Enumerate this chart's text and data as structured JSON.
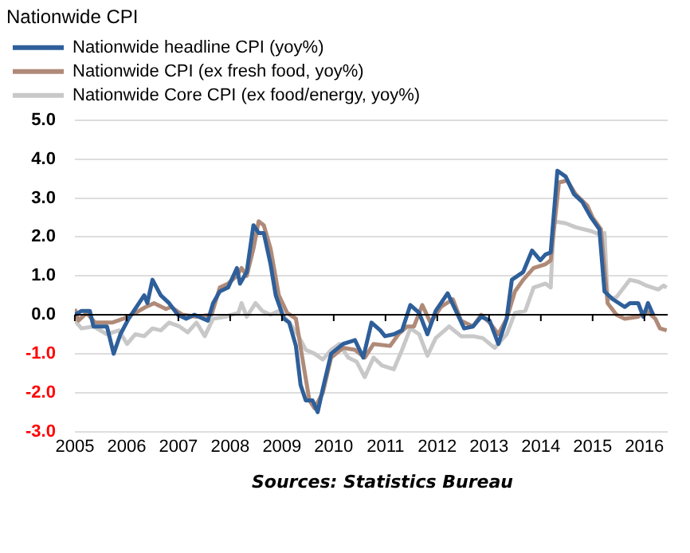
{
  "chart_data": {
    "type": "line",
    "title": "Nationwide CPI",
    "xlim": [
      2005,
      2016.45
    ],
    "xticks": [
      2005,
      2006,
      2007,
      2008,
      2009,
      2010,
      2011,
      2012,
      2013,
      2014,
      2015,
      2016
    ],
    "ylim": [
      -3,
      5
    ],
    "yticks": [
      {
        "value": -3,
        "label": "-3.0"
      },
      {
        "value": -2,
        "label": "-2.0"
      },
      {
        "value": -1,
        "label": "-1.0"
      },
      {
        "value": 0,
        "label": "0.0"
      },
      {
        "value": 1,
        "label": "1.0"
      },
      {
        "value": 2,
        "label": "2.0"
      },
      {
        "value": 3,
        "label": "3.0"
      },
      {
        "value": 4,
        "label": "4.0"
      },
      {
        "value": 5,
        "label": "5.0"
      }
    ],
    "grid": "y",
    "legend": "top left",
    "marker": "none",
    "line_style": "solid",
    "ref_lines": [
      {
        "axis": "y",
        "value": 0,
        "color": "#000000"
      }
    ],
    "annotations": [
      "Sources: Statistics Bureau"
    ],
    "series": [
      {
        "name": "Nationwide headline CPI (yoy%)",
        "color": "#2e5f9a",
        "x": [
          2005,
          2005.13,
          2005.29,
          2005.36,
          2005.62,
          2005.75,
          2005.88,
          2006.04,
          2006.34,
          2006.4,
          2006.5,
          2006.66,
          2006.82,
          2006.99,
          2007.15,
          2007.31,
          2007.48,
          2007.57,
          2007.67,
          2007.8,
          2007.96,
          2008.13,
          2008.19,
          2008.32,
          2008.45,
          2008.55,
          2008.65,
          2008.78,
          2008.88,
          2009.04,
          2009.14,
          2009.27,
          2009.36,
          2009.46,
          2009.59,
          2009.69,
          2009.79,
          2009.95,
          2010.18,
          2010.41,
          2010.57,
          2010.73,
          2010.9,
          2010.99,
          2011.16,
          2011.32,
          2011.48,
          2011.65,
          2011.81,
          2011.97,
          2012.2,
          2012.36,
          2012.52,
          2012.69,
          2012.85,
          2013.01,
          2013.18,
          2013.34,
          2013.44,
          2013.66,
          2013.83,
          2013.99,
          2014.09,
          2014.19,
          2014.32,
          2014.48,
          2014.64,
          2014.8,
          2014.97,
          2015.13,
          2015.23,
          2015.39,
          2015.62,
          2015.72,
          2015.88,
          2015.98,
          2016.07,
          2016.17
        ],
        "values": [
          0,
          0.1,
          0.1,
          -0.3,
          -0.3,
          -1.0,
          -0.5,
          -0.1,
          0.5,
          0.3,
          0.9,
          0.5,
          0.3,
          0,
          -0.1,
          0,
          -0.1,
          -0.15,
          0.3,
          0.6,
          0.7,
          1.2,
          0.8,
          1.1,
          2.3,
          2.1,
          2.1,
          1.3,
          0.5,
          -0.1,
          -0.2,
          -0.8,
          -1.8,
          -2.2,
          -2.2,
          -2.5,
          -1.9,
          -1.0,
          -0.75,
          -0.65,
          -1.1,
          -0.2,
          -0.4,
          -0.55,
          -0.5,
          -0.4,
          0.25,
          0.05,
          -0.5,
          0.1,
          0.55,
          0.1,
          -0.35,
          -0.3,
          -0.05,
          -0.15,
          -0.75,
          -0.1,
          0.9,
          1.1,
          1.65,
          1.4,
          1.55,
          1.6,
          3.7,
          3.55,
          3.1,
          2.9,
          2.5,
          2.2,
          0.6,
          0.4,
          0.2,
          0.3,
          0.3,
          -0.05,
          0.3,
          0
        ]
      },
      {
        "name": "Nationwide CPI (ex fresh food, yoy%)",
        "color": "#b08a78",
        "x": [
          2005,
          2005.07,
          2005.23,
          2005.39,
          2005.72,
          2005.94,
          2006.17,
          2006.37,
          2006.53,
          2006.76,
          2006.86,
          2007.08,
          2007.35,
          2007.64,
          2007.8,
          2007.96,
          2008.13,
          2008.22,
          2008.32,
          2008.45,
          2008.55,
          2008.65,
          2008.78,
          2008.94,
          2009.1,
          2009.27,
          2009.43,
          2009.53,
          2009.63,
          2009.79,
          2009.95,
          2010.18,
          2010.41,
          2010.6,
          2010.77,
          2011.09,
          2011.25,
          2011.42,
          2011.55,
          2011.71,
          2011.87,
          2012.07,
          2012.3,
          2012.46,
          2012.69,
          2012.85,
          2013.01,
          2013.18,
          2013.34,
          2013.5,
          2013.66,
          2013.86,
          2014.09,
          2014.19,
          2014.35,
          2014.51,
          2014.67,
          2014.9,
          2015.0,
          2015.16,
          2015.29,
          2015.46,
          2015.62,
          2015.88,
          2016.04,
          2016.21,
          2016.3,
          2016.43
        ],
        "values": [
          0.15,
          -0.15,
          0.05,
          -0.2,
          -0.2,
          -0.1,
          0.05,
          0.2,
          0.3,
          0.15,
          0.2,
          0,
          -0.05,
          0,
          0.7,
          0.8,
          1.0,
          1.2,
          1.0,
          1.7,
          2.4,
          2.3,
          1.7,
          0.5,
          0.05,
          -0.1,
          -1.4,
          -2.2,
          -2.4,
          -2.0,
          -1.1,
          -0.85,
          -0.9,
          -1.1,
          -0.75,
          -0.8,
          -0.5,
          -0.3,
          -0.3,
          0.25,
          -0.2,
          0.2,
          0.4,
          -0.15,
          -0.3,
          0,
          -0.2,
          -0.5,
          -0.1,
          0.6,
          0.9,
          1.2,
          1.3,
          1.4,
          3.4,
          3.45,
          3.1,
          2.8,
          2.5,
          2.2,
          0.3,
          0,
          -0.1,
          -0.05,
          0.1,
          -0.1,
          -0.35,
          -0.4
        ]
      },
      {
        "name": "Nationwide Core CPI (ex food/energy, yoy%)",
        "color": "#c8c8c8",
        "x": [
          2005,
          2005.13,
          2005.36,
          2005.62,
          2005.85,
          2006.01,
          2006.17,
          2006.34,
          2006.5,
          2006.66,
          2006.82,
          2007.02,
          2007.18,
          2007.35,
          2007.51,
          2007.67,
          2007.9,
          2008.16,
          2008.22,
          2008.32,
          2008.49,
          2008.62,
          2008.78,
          2008.94,
          2009.14,
          2009.3,
          2009.46,
          2009.63,
          2009.79,
          2009.95,
          2010.11,
          2010.28,
          2010.44,
          2010.6,
          2010.77,
          2010.93,
          2011.16,
          2011.32,
          2011.48,
          2011.65,
          2011.81,
          2011.97,
          2012.23,
          2012.46,
          2012.69,
          2012.88,
          2013.11,
          2013.34,
          2013.5,
          2013.7,
          2013.86,
          2014.09,
          2014.19,
          2014.25,
          2014.48,
          2014.67,
          2014.97,
          2015.16,
          2015.23,
          2015.29,
          2015.46,
          2015.72,
          2015.88,
          2016.04,
          2016.27,
          2016.37,
          2016.43
        ],
        "values": [
          -0.15,
          -0.35,
          -0.3,
          -0.5,
          -0.4,
          -0.75,
          -0.5,
          -0.55,
          -0.35,
          -0.4,
          -0.2,
          -0.3,
          -0.45,
          -0.2,
          -0.55,
          -0.1,
          -0.05,
          0.05,
          0.3,
          -0.05,
          0.3,
          0.1,
          0,
          0.1,
          -0.2,
          -0.5,
          -0.9,
          -1.0,
          -1.15,
          -0.9,
          -0.75,
          -1.1,
          -1.2,
          -1.6,
          -1.1,
          -1.3,
          -1.4,
          -0.9,
          -0.35,
          -0.5,
          -1.05,
          -0.6,
          -0.3,
          -0.55,
          -0.55,
          -0.6,
          -0.85,
          -0.5,
          0.05,
          0.1,
          0.7,
          0.8,
          0.7,
          2.4,
          2.35,
          2.25,
          2.15,
          2.05,
          2.1,
          0.4,
          0.45,
          0.9,
          0.85,
          0.75,
          0.65,
          0.75,
          0.7
        ]
      }
    ]
  }
}
